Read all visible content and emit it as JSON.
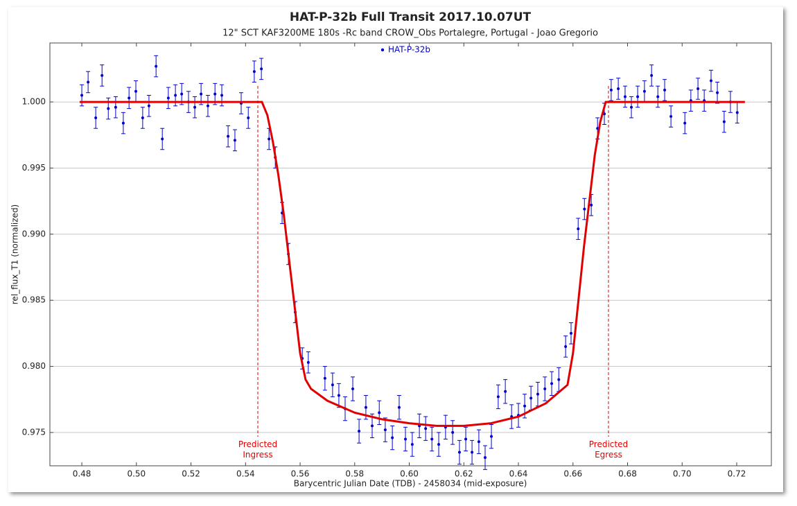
{
  "chart_data": {
    "type": "scatter",
    "title": "HAT-P-32b Full Transit  2017.10.07UT",
    "subtitle": "12\" SCT KAF3200ME 180s -Rc band CROW_Obs Portalegre, Portugal - Joao Gregorio",
    "x_label": "Barycentric Julian Date (TDB) - 2458034 (mid-exposure)",
    "y_label": "rel_flux_T1 (normalized)",
    "xlim": [
      0.4683,
      0.7327
    ],
    "ylim": [
      0.97248,
      1.00446
    ],
    "xticks": [
      0.48,
      {
        "value": 0.5,
        "label": "0.50"
      },
      0.52,
      0.54,
      0.56,
      0.58,
      {
        "value": 0.6,
        "label": "0.60"
      },
      0.62,
      0.64,
      0.66,
      0.68,
      {
        "value": 0.7,
        "label": "0.70"
      },
      0.72
    ],
    "yticks": [
      0.975,
      {
        "value": 0.98,
        "label": "0.980"
      },
      0.985,
      {
        "value": 0.99,
        "label": "0.990"
      },
      0.995,
      {
        "value": 1,
        "label": "1.000"
      }
    ],
    "grid": true,
    "series": [
      {
        "name": "HAT-P-32b",
        "color": "#0000cc",
        "x": [
          0.48,
          0.4823,
          0.4851,
          0.4874,
          0.4897,
          0.4924,
          0.4952,
          0.4973,
          0.4998,
          0.5023,
          0.5046,
          0.5072,
          0.5095,
          0.5117,
          0.5143,
          0.5166,
          0.5191,
          0.5214,
          0.5237,
          0.5262,
          0.5288,
          0.5313,
          0.5336,
          0.5361,
          0.5384,
          0.541,
          0.5432,
          0.5458,
          0.5486,
          0.5509,
          0.5534,
          0.5557,
          0.5582,
          0.5608,
          0.563,
          0.5691,
          0.5719,
          0.5742,
          0.5765,
          0.5793,
          0.5816,
          0.5841,
          0.5864,
          0.589,
          0.5912,
          0.5938,
          0.5963,
          0.5986,
          0.6011,
          0.6037,
          0.606,
          0.6083,
          0.6108,
          0.6133,
          0.6159,
          0.6184,
          0.6207,
          0.623,
          0.6255,
          0.6278,
          0.6301,
          0.6326,
          0.6352,
          0.6375,
          0.64,
          0.6423,
          0.6446,
          0.6471,
          0.6497,
          0.6522,
          0.6548,
          0.6573,
          0.6593,
          0.6619,
          0.6642,
          0.6667,
          0.669,
          0.6715,
          0.674,
          0.6766,
          0.6791,
          0.6814,
          0.6837,
          0.6862,
          0.6888,
          0.6911,
          0.6936,
          0.6959,
          0.701,
          0.7032,
          0.7058,
          0.7081,
          0.7106,
          0.7129,
          0.7154,
          0.7177,
          0.7202
        ],
        "values": [
          1.0005,
          1.0015,
          0.9988,
          1.002,
          0.9995,
          0.9996,
          0.9984,
          1.0003,
          1.0008,
          0.9988,
          0.9997,
          1.0027,
          0.9972,
          1.0003,
          1.0005,
          1.0006,
          1.0,
          0.9996,
          1.0006,
          0.9997,
          1.0006,
          1.0005,
          0.9974,
          0.9971,
          0.9999,
          0.9988,
          1.0023,
          1.0025,
          0.9972,
          0.9958,
          0.9916,
          0.9885,
          0.9841,
          0.9806,
          0.9803,
          0.9791,
          0.9786,
          0.9778,
          0.9768,
          0.9783,
          0.9751,
          0.9769,
          0.9755,
          0.9765,
          0.9752,
          0.9746,
          0.9769,
          0.9745,
          0.9741,
          0.9755,
          0.9753,
          0.9745,
          0.9741,
          0.9754,
          0.975,
          0.9735,
          0.9745,
          0.9735,
          0.9743,
          0.9731,
          0.9747,
          0.9777,
          0.9781,
          0.9762,
          0.9763,
          0.977,
          0.9776,
          0.9779,
          0.9783,
          0.9787,
          0.979,
          0.9815,
          0.9825,
          0.9904,
          0.9919,
          0.9922,
          0.998,
          0.9991,
          1.0009,
          1.001,
          1.0004,
          0.9996,
          1.0004,
          1.0008,
          1.002,
          1.0004,
          1.0009,
          0.9989,
          0.9984,
          1.0001,
          1.001,
          1.0001,
          1.0016,
          1.0007,
          0.9985,
          1.0,
          0.9992
        ],
        "errors": [
          0.0008,
          0.0008,
          0.0008,
          0.0008,
          0.0008,
          0.0008,
          0.0008,
          0.0008,
          0.0008,
          0.0008,
          0.0008,
          0.0008,
          0.0008,
          0.0008,
          0.0008,
          0.0008,
          0.0008,
          0.0008,
          0.0008,
          0.0008,
          0.0008,
          0.0008,
          0.0008,
          0.0008,
          0.0008,
          0.0008,
          0.0008,
          0.0008,
          0.0008,
          0.0008,
          0.0008,
          0.0008,
          0.0008,
          0.0008,
          0.0008,
          0.0009,
          0.0009,
          0.0009,
          0.0009,
          0.0009,
          0.0009,
          0.0009,
          0.0009,
          0.0009,
          0.0009,
          0.0009,
          0.0009,
          0.0009,
          0.0009,
          0.0009,
          0.0009,
          0.0009,
          0.0009,
          0.0009,
          0.0009,
          0.0009,
          0.0009,
          0.0009,
          0.0009,
          0.0009,
          0.0009,
          0.0009,
          0.0009,
          0.0009,
          0.0009,
          0.0009,
          0.0009,
          0.0009,
          0.0009,
          0.0009,
          0.0009,
          0.0008,
          0.0008,
          0.0008,
          0.0008,
          0.0008,
          0.0008,
          0.0008,
          0.0008,
          0.0008,
          0.0008,
          0.0008,
          0.0008,
          0.0008,
          0.0008,
          0.0008,
          0.0008,
          0.0008,
          0.0008,
          0.0008,
          0.0008,
          0.0008,
          0.0008,
          0.0008,
          0.0008,
          0.0008,
          0.0008
        ]
      }
    ],
    "model": {
      "color": "#e00000",
      "x": [
        0.4792,
        0.546,
        0.548,
        0.55,
        0.552,
        0.554,
        0.556,
        0.558,
        0.56,
        0.562,
        0.564,
        0.57,
        0.58,
        0.59,
        0.6,
        0.61,
        0.62,
        0.63,
        0.64,
        0.65,
        0.658,
        0.66,
        0.662,
        0.664,
        0.666,
        0.668,
        0.67,
        0.672,
        0.723
      ],
      "values": [
        1.0,
        1.0,
        0.999,
        0.997,
        0.9945,
        0.9915,
        0.988,
        0.9845,
        0.981,
        0.979,
        0.9783,
        0.9774,
        0.9765,
        0.976,
        0.9757,
        0.9755,
        0.9755,
        0.9757,
        0.9762,
        0.9772,
        0.9786,
        0.981,
        0.985,
        0.989,
        0.9925,
        0.996,
        0.9985,
        1.0,
        1.0
      ]
    },
    "annotations": [
      {
        "x": 0.5445,
        "label": "Predicted Ingress",
        "color": "#e00000"
      },
      {
        "x": 0.673,
        "label": "Predicted Egress",
        "color": "#e00000"
      }
    ]
  }
}
